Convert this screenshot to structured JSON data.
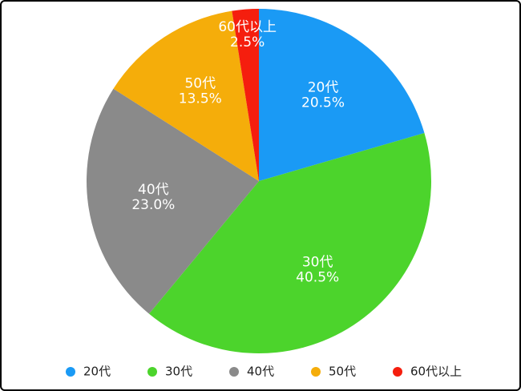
{
  "chart_data": {
    "type": "pie",
    "categories": [
      "20代",
      "30代",
      "40代",
      "50代",
      "60代以上"
    ],
    "values": [
      20.5,
      40.5,
      23.0,
      13.5,
      2.5
    ],
    "value_labels": [
      "20.5%",
      "40.5%",
      "23.0%",
      "13.5%",
      "2.5%"
    ],
    "colors": [
      "#1a9af5",
      "#4cd42c",
      "#8a8a8a",
      "#f5ad0a",
      "#f51e0e"
    ],
    "legend": "bottom"
  }
}
